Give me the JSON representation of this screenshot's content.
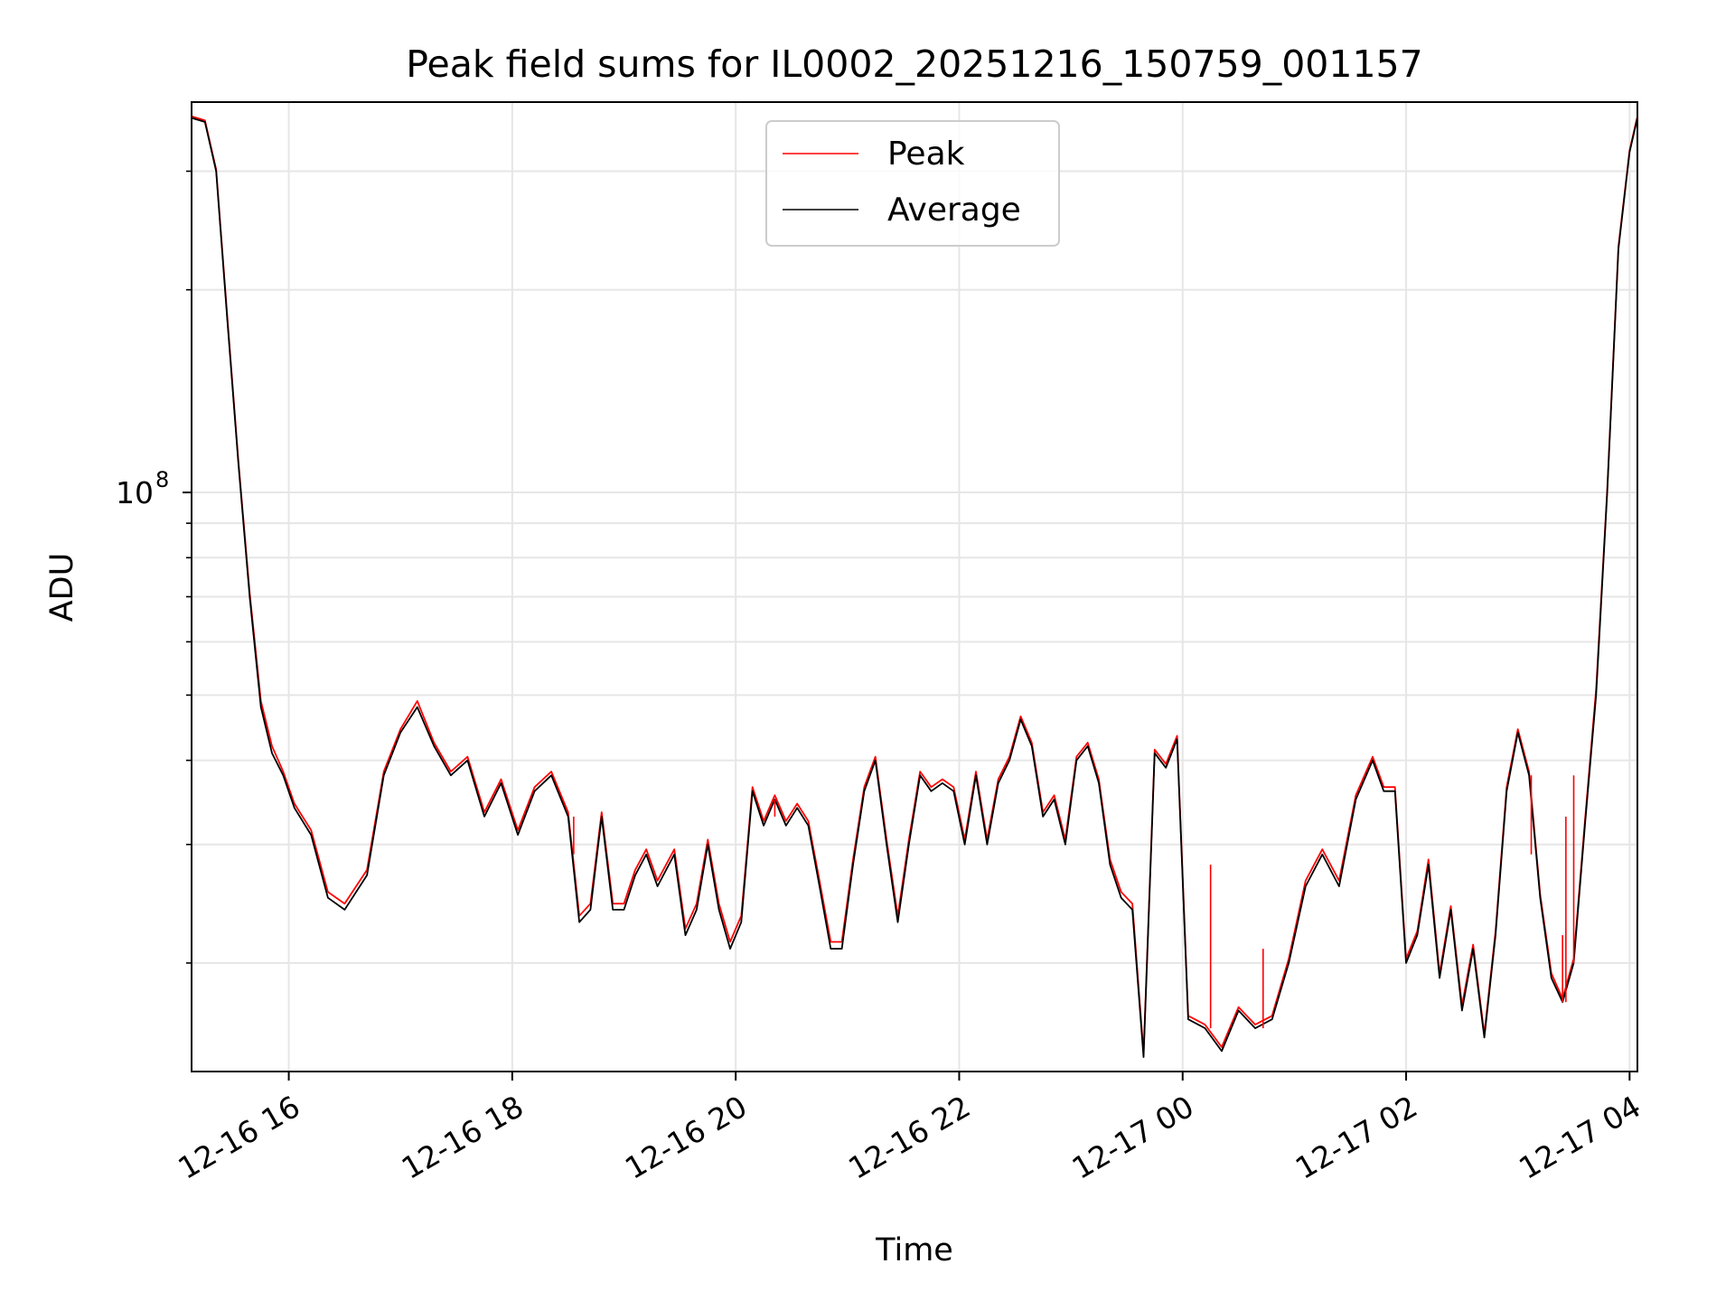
{
  "chart_data": {
    "type": "line",
    "title": "Peak field sums for IL0002_20251216_150759_001157",
    "xlabel": "Time",
    "ylabel": "ADU",
    "yscale": "log",
    "ylim": [
      13800000,
      380000000
    ],
    "xlim_hours": [
      15.13,
      28.07
    ],
    "x_ticks": [
      {
        "label": "12-16 16",
        "hours": 16
      },
      {
        "label": "12-16 18",
        "hours": 18
      },
      {
        "label": "12-16 20",
        "hours": 20
      },
      {
        "label": "12-16 22",
        "hours": 22
      },
      {
        "label": "12-17 00",
        "hours": 24
      },
      {
        "label": "12-17 02",
        "hours": 26
      },
      {
        "label": "12-17 04",
        "hours": 28
      }
    ],
    "y_major_ticks": [
      {
        "label": "10",
        "exponent": "8",
        "value": 100000000
      }
    ],
    "y_minor_ticks": [
      20000000,
      30000000,
      40000000,
      50000000,
      60000000,
      70000000,
      80000000,
      90000000,
      200000000,
      300000000
    ],
    "grid": true,
    "legend": {
      "position": "top-center",
      "entries": [
        {
          "name": "Peak",
          "color": "#ff0000"
        },
        {
          "name": "Average",
          "color": "#000000"
        }
      ]
    },
    "series": [
      {
        "name": "Average",
        "color": "#000000",
        "points": [
          [
            15.13,
            360000000
          ],
          [
            15.25,
            355000000
          ],
          [
            15.35,
            300000000
          ],
          [
            15.45,
            180000000
          ],
          [
            15.55,
            110000000
          ],
          [
            15.65,
            70000000
          ],
          [
            15.75,
            48000000
          ],
          [
            15.85,
            41000000
          ],
          [
            15.95,
            38000000
          ],
          [
            16.05,
            34000000
          ],
          [
            16.2,
            31000000
          ],
          [
            16.35,
            25000000
          ],
          [
            16.5,
            24000000
          ],
          [
            16.7,
            27000000
          ],
          [
            16.85,
            38000000
          ],
          [
            17.0,
            44000000
          ],
          [
            17.15,
            48000000
          ],
          [
            17.3,
            42000000
          ],
          [
            17.45,
            38000000
          ],
          [
            17.6,
            40000000
          ],
          [
            17.75,
            33000000
          ],
          [
            17.9,
            37000000
          ],
          [
            18.05,
            31000000
          ],
          [
            18.2,
            36000000
          ],
          [
            18.35,
            38000000
          ],
          [
            18.5,
            33000000
          ],
          [
            18.6,
            23000000
          ],
          [
            18.7,
            24000000
          ],
          [
            18.8,
            33000000
          ],
          [
            18.9,
            24000000
          ],
          [
            19.0,
            24000000
          ],
          [
            19.1,
            27000000
          ],
          [
            19.2,
            29000000
          ],
          [
            19.3,
            26000000
          ],
          [
            19.45,
            29000000
          ],
          [
            19.55,
            22000000
          ],
          [
            19.65,
            24000000
          ],
          [
            19.75,
            30000000
          ],
          [
            19.85,
            24000000
          ],
          [
            19.95,
            21000000
          ],
          [
            20.05,
            23000000
          ],
          [
            20.15,
            36000000
          ],
          [
            20.25,
            32000000
          ],
          [
            20.35,
            35000000
          ],
          [
            20.45,
            32000000
          ],
          [
            20.55,
            34000000
          ],
          [
            20.65,
            32000000
          ],
          [
            20.75,
            26000000
          ],
          [
            20.85,
            21000000
          ],
          [
            20.95,
            21000000
          ],
          [
            21.05,
            28000000
          ],
          [
            21.15,
            36000000
          ],
          [
            21.25,
            40000000
          ],
          [
            21.35,
            30000000
          ],
          [
            21.45,
            23000000
          ],
          [
            21.55,
            30000000
          ],
          [
            21.65,
            38000000
          ],
          [
            21.75,
            36000000
          ],
          [
            21.85,
            37000000
          ],
          [
            21.95,
            36000000
          ],
          [
            22.05,
            30000000
          ],
          [
            22.15,
            38000000
          ],
          [
            22.25,
            30000000
          ],
          [
            22.35,
            37000000
          ],
          [
            22.45,
            40000000
          ],
          [
            22.55,
            46000000
          ],
          [
            22.65,
            42000000
          ],
          [
            22.75,
            33000000
          ],
          [
            22.85,
            35000000
          ],
          [
            22.95,
            30000000
          ],
          [
            23.05,
            40000000
          ],
          [
            23.15,
            42000000
          ],
          [
            23.25,
            37000000
          ],
          [
            23.35,
            28000000
          ],
          [
            23.45,
            25000000
          ],
          [
            23.55,
            24000000
          ],
          [
            23.65,
            14500000
          ],
          [
            23.75,
            41000000
          ],
          [
            23.85,
            39000000
          ],
          [
            23.95,
            43000000
          ],
          [
            24.05,
            16500000
          ],
          [
            24.2,
            16000000
          ],
          [
            24.35,
            14800000
          ],
          [
            24.5,
            17000000
          ],
          [
            24.65,
            16000000
          ],
          [
            24.8,
            16500000
          ],
          [
            24.95,
            20000000
          ],
          [
            25.1,
            26000000
          ],
          [
            25.25,
            29000000
          ],
          [
            25.4,
            26000000
          ],
          [
            25.55,
            35000000
          ],
          [
            25.7,
            40000000
          ],
          [
            25.8,
            36000000
          ],
          [
            25.9,
            36000000
          ],
          [
            26.0,
            20000000
          ],
          [
            26.1,
            22000000
          ],
          [
            26.2,
            28000000
          ],
          [
            26.3,
            19000000
          ],
          [
            26.4,
            24000000
          ],
          [
            26.5,
            17000000
          ],
          [
            26.6,
            21000000
          ],
          [
            26.7,
            15500000
          ],
          [
            26.8,
            22000000
          ],
          [
            26.9,
            36000000
          ],
          [
            27.0,
            44000000
          ],
          [
            27.1,
            38000000
          ],
          [
            27.2,
            25000000
          ],
          [
            27.3,
            19000000
          ],
          [
            27.4,
            17500000
          ],
          [
            27.5,
            20000000
          ],
          [
            27.6,
            32000000
          ],
          [
            27.7,
            50000000
          ],
          [
            27.8,
            100000000
          ],
          [
            27.9,
            230000000
          ],
          [
            28.0,
            320000000
          ],
          [
            28.07,
            360000000
          ]
        ]
      },
      {
        "name": "Peak",
        "color": "#ff0000",
        "points": [
          [
            15.13,
            362000000
          ],
          [
            15.25,
            357000000
          ],
          [
            15.35,
            302000000
          ],
          [
            15.45,
            182000000
          ],
          [
            15.55,
            111000000
          ],
          [
            15.65,
            71000000
          ],
          [
            15.75,
            49000000
          ],
          [
            15.85,
            42000000
          ],
          [
            15.95,
            38500000
          ],
          [
            16.05,
            34500000
          ],
          [
            16.2,
            31500000
          ],
          [
            16.35,
            25500000
          ],
          [
            16.5,
            24500000
          ],
          [
            16.7,
            27500000
          ],
          [
            16.85,
            38500000
          ],
          [
            17.0,
            44500000
          ],
          [
            17.15,
            49000000
          ],
          [
            17.3,
            42500000
          ],
          [
            17.45,
            38500000
          ],
          [
            17.6,
            40500000
          ],
          [
            17.75,
            33500000
          ],
          [
            17.9,
            37500000
          ],
          [
            18.05,
            31500000
          ],
          [
            18.2,
            36500000
          ],
          [
            18.35,
            38500000
          ],
          [
            18.5,
            33500000
          ],
          [
            18.6,
            23500000
          ],
          [
            18.7,
            24500000
          ],
          [
            18.8,
            33500000
          ],
          [
            18.9,
            24500000
          ],
          [
            19.0,
            24500000
          ],
          [
            19.1,
            27500000
          ],
          [
            19.2,
            29500000
          ],
          [
            19.3,
            26500000
          ],
          [
            19.45,
            29500000
          ],
          [
            19.55,
            22500000
          ],
          [
            19.65,
            24500000
          ],
          [
            19.75,
            30500000
          ],
          [
            19.85,
            24500000
          ],
          [
            19.95,
            21500000
          ],
          [
            20.05,
            23500000
          ],
          [
            20.15,
            36500000
          ],
          [
            20.25,
            32500000
          ],
          [
            20.35,
            35500000
          ],
          [
            20.45,
            32500000
          ],
          [
            20.55,
            34500000
          ],
          [
            20.65,
            32500000
          ],
          [
            20.75,
            26500000
          ],
          [
            20.85,
            21500000
          ],
          [
            20.95,
            21500000
          ],
          [
            21.05,
            28500000
          ],
          [
            21.15,
            36500000
          ],
          [
            21.25,
            40500000
          ],
          [
            21.35,
            30500000
          ],
          [
            21.45,
            23500000
          ],
          [
            21.55,
            30500000
          ],
          [
            21.65,
            38500000
          ],
          [
            21.75,
            36500000
          ],
          [
            21.85,
            37500000
          ],
          [
            21.95,
            36500000
          ],
          [
            22.05,
            30500000
          ],
          [
            22.15,
            38500000
          ],
          [
            22.25,
            30500000
          ],
          [
            22.35,
            37500000
          ],
          [
            22.45,
            40500000
          ],
          [
            22.55,
            46500000
          ],
          [
            22.65,
            42500000
          ],
          [
            22.75,
            33500000
          ],
          [
            22.85,
            35500000
          ],
          [
            22.95,
            30500000
          ],
          [
            23.05,
            40500000
          ],
          [
            23.15,
            42500000
          ],
          [
            23.25,
            37500000
          ],
          [
            23.35,
            28500000
          ],
          [
            23.45,
            25500000
          ],
          [
            23.55,
            24500000
          ],
          [
            23.65,
            14700000
          ],
          [
            23.75,
            41500000
          ],
          [
            23.85,
            39500000
          ],
          [
            23.95,
            43500000
          ],
          [
            24.05,
            16700000
          ],
          [
            24.2,
            16200000
          ],
          [
            24.35,
            15000000
          ],
          [
            24.5,
            17200000
          ],
          [
            24.65,
            16200000
          ],
          [
            24.8,
            16700000
          ],
          [
            24.95,
            20300000
          ],
          [
            25.1,
            26500000
          ],
          [
            25.25,
            29500000
          ],
          [
            25.4,
            26500000
          ],
          [
            25.55,
            35500000
          ],
          [
            25.7,
            40500000
          ],
          [
            25.8,
            36500000
          ],
          [
            25.9,
            36500000
          ],
          [
            26.0,
            20300000
          ],
          [
            26.1,
            22300000
          ],
          [
            26.2,
            28500000
          ],
          [
            26.3,
            19300000
          ],
          [
            26.4,
            24300000
          ],
          [
            26.5,
            17300000
          ],
          [
            26.6,
            21300000
          ],
          [
            26.7,
            15700000
          ],
          [
            26.8,
            22300000
          ],
          [
            26.9,
            36500000
          ],
          [
            27.0,
            44500000
          ],
          [
            27.1,
            38500000
          ],
          [
            27.2,
            25300000
          ],
          [
            27.3,
            19300000
          ],
          [
            27.4,
            17700000
          ],
          [
            27.5,
            20300000
          ],
          [
            27.6,
            32500000
          ],
          [
            27.7,
            51000000
          ],
          [
            27.8,
            101000000
          ],
          [
            27.9,
            232000000
          ],
          [
            28.0,
            322000000
          ],
          [
            28.07,
            362000000
          ]
        ]
      }
    ],
    "spikes": [
      {
        "series": "Peak",
        "hours": 18.55,
        "value": 29000000
      },
      {
        "series": "Peak",
        "hours": 20.35,
        "value": 33000000
      },
      {
        "series": "Peak",
        "hours": 24.25,
        "value": 28000000
      },
      {
        "series": "Peak",
        "hours": 24.72,
        "value": 21000000
      },
      {
        "series": "Peak",
        "hours": 27.12,
        "value": 29000000
      },
      {
        "series": "Peak",
        "hours": 27.4,
        "value": 22000000
      },
      {
        "series": "Peak",
        "hours": 27.43,
        "value": 33000000
      },
      {
        "series": "Peak",
        "hours": 27.5,
        "value": 38000000
      }
    ]
  }
}
